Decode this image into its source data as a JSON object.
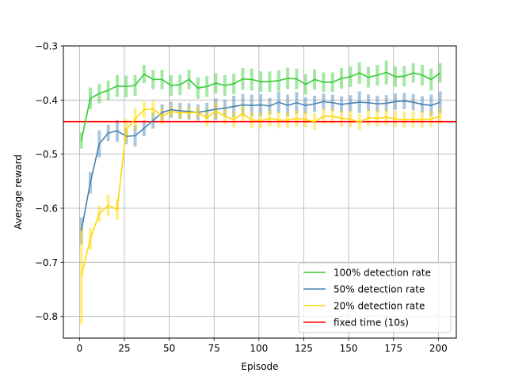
{
  "chart_data": {
    "type": "line",
    "title": "",
    "xlabel": "Episode",
    "ylabel": "Average reward",
    "xlim": [
      -9,
      210
    ],
    "ylim": [
      -0.84,
      -0.3
    ],
    "x_ticks": [
      0,
      25,
      50,
      75,
      100,
      125,
      150,
      175,
      200
    ],
    "y_ticks": [
      -0.8,
      -0.7,
      -0.6,
      -0.5,
      -0.4,
      -0.3
    ],
    "x_tick_labels": [
      "0",
      "25",
      "50",
      "75",
      "100",
      "125",
      "150",
      "175",
      "200"
    ],
    "y_tick_labels": [
      "−0.8",
      "−0.7",
      "−0.6",
      "−0.5",
      "−0.4",
      "−0.3"
    ],
    "grid": true,
    "legend_position": "bottom-right",
    "x": [
      1,
      6,
      11,
      16,
      21,
      26,
      31,
      36,
      41,
      46,
      51,
      56,
      61,
      66,
      71,
      76,
      81,
      86,
      91,
      96,
      101,
      106,
      111,
      116,
      121,
      126,
      131,
      136,
      141,
      146,
      151,
      156,
      161,
      166,
      171,
      176,
      181,
      186,
      191,
      196,
      201
    ],
    "series": [
      {
        "name": "100% detection rate",
        "color": "#33cc33",
        "values": [
          -0.475,
          -0.397,
          -0.388,
          -0.382,
          -0.374,
          -0.375,
          -0.373,
          -0.352,
          -0.362,
          -0.362,
          -0.373,
          -0.372,
          -0.362,
          -0.378,
          -0.375,
          -0.369,
          -0.373,
          -0.37,
          -0.361,
          -0.362,
          -0.366,
          -0.366,
          -0.364,
          -0.36,
          -0.361,
          -0.371,
          -0.362,
          -0.367,
          -0.367,
          -0.36,
          -0.357,
          -0.35,
          -0.358,
          -0.354,
          -0.349,
          -0.357,
          -0.356,
          -0.35,
          -0.354,
          -0.362,
          -0.35
        ],
        "err": [
          0.015,
          0.02,
          0.018,
          0.018,
          0.02,
          0.02,
          0.019,
          0.017,
          0.018,
          0.018,
          0.019,
          0.019,
          0.018,
          0.02,
          0.019,
          0.019,
          0.019,
          0.019,
          0.02,
          0.02,
          0.019,
          0.019,
          0.019,
          0.02,
          0.019,
          0.019,
          0.019,
          0.018,
          0.018,
          0.019,
          0.019,
          0.02,
          0.019,
          0.019,
          0.022,
          0.019,
          0.019,
          0.018,
          0.019,
          0.02,
          0.018
        ]
      },
      {
        "name": "50% detection rate",
        "color": "#4682b4",
        "values": [
          -0.642,
          -0.553,
          -0.481,
          -0.461,
          -0.457,
          -0.467,
          -0.466,
          -0.452,
          -0.438,
          -0.423,
          -0.418,
          -0.42,
          -0.421,
          -0.423,
          -0.42,
          -0.417,
          -0.415,
          -0.412,
          -0.409,
          -0.41,
          -0.409,
          -0.411,
          -0.404,
          -0.41,
          -0.405,
          -0.41,
          -0.407,
          -0.403,
          -0.405,
          -0.408,
          -0.406,
          -0.404,
          -0.405,
          -0.407,
          -0.406,
          -0.403,
          -0.402,
          -0.404,
          -0.408,
          -0.41,
          -0.404
        ],
        "err": [
          0.025,
          0.02,
          0.025,
          0.015,
          0.02,
          0.015,
          0.02,
          0.015,
          0.015,
          0.015,
          0.015,
          0.015,
          0.015,
          0.015,
          0.015,
          0.02,
          0.015,
          0.02,
          0.02,
          0.02,
          0.02,
          0.015,
          0.02,
          0.02,
          0.02,
          0.015,
          0.015,
          0.015,
          0.015,
          0.015,
          0.015,
          0.02,
          0.015,
          0.015,
          0.015,
          0.015,
          0.015,
          0.015,
          0.015,
          0.02,
          0.02
        ]
      },
      {
        "name": "20% detection rate",
        "color": "#ffd700",
        "values": [
          -0.725,
          -0.657,
          -0.61,
          -0.595,
          -0.602,
          -0.455,
          -0.435,
          -0.418,
          -0.416,
          -0.43,
          -0.421,
          -0.424,
          -0.423,
          -0.423,
          -0.433,
          -0.42,
          -0.43,
          -0.436,
          -0.425,
          -0.437,
          -0.438,
          -0.434,
          -0.437,
          -0.437,
          -0.434,
          -0.436,
          -0.44,
          -0.43,
          -0.43,
          -0.434,
          -0.435,
          -0.441,
          -0.433,
          -0.434,
          -0.432,
          -0.435,
          -0.436,
          -0.436,
          -0.436,
          -0.435,
          -0.43
        ],
        "err": [
          0.09,
          0.02,
          0.015,
          0.02,
          0.02,
          0.02,
          0.02,
          0.015,
          0.015,
          0.015,
          0.01,
          0.01,
          0.01,
          0.01,
          0.015,
          0.015,
          0.015,
          0.015,
          0.015,
          0.015,
          0.015,
          0.015,
          0.015,
          0.015,
          0.015,
          0.015,
          0.015,
          0.015,
          0.015,
          0.015,
          0.015,
          0.015,
          0.015,
          0.015,
          0.015,
          0.015,
          0.015,
          0.015,
          0.015,
          0.015,
          0.015
        ]
      }
    ],
    "reference_lines": [
      {
        "name": "fixed time (10s)",
        "color": "#ff0000",
        "y": -0.44
      }
    ]
  }
}
